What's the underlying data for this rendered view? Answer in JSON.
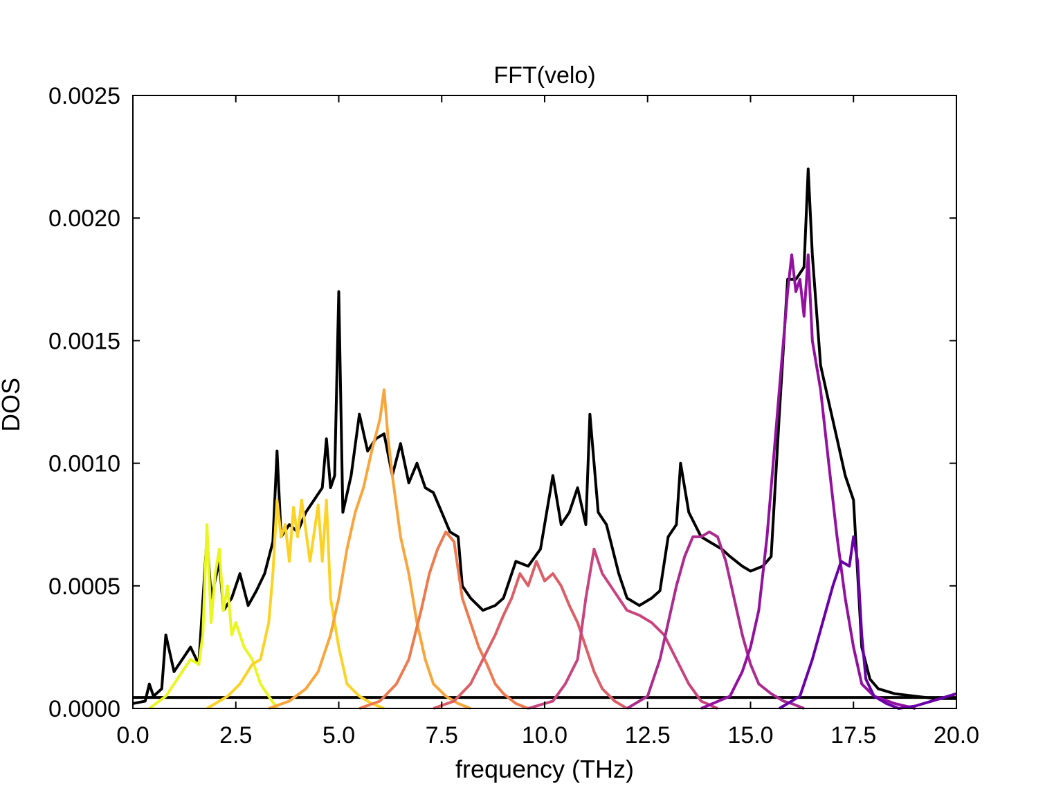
{
  "chart_data": {
    "type": "line",
    "title": "FFT(velo)",
    "xlabel": "frequency (THz)",
    "ylabel": "DOS",
    "xlim": [
      0,
      20
    ],
    "ylim": [
      0,
      0.0025
    ],
    "xticks": [
      "0.0",
      "2.5",
      "5.0",
      "7.5",
      "10.0",
      "12.5",
      "15.0",
      "17.5",
      "20.0"
    ],
    "yticks": [
      "0.0000",
      "0.0005",
      "0.0010",
      "0.0015",
      "0.0020",
      "0.0025"
    ],
    "grid": false,
    "legend": "none",
    "series": [
      {
        "color": "#000000",
        "x": [
          0,
          0.3,
          0.4,
          0.5,
          0.7,
          0.8,
          1.0,
          1.2,
          1.4,
          1.6,
          1.8,
          1.9,
          2.1,
          2.2,
          2.4,
          2.6,
          2.8,
          3.0,
          3.2,
          3.4,
          3.5,
          3.6,
          3.8,
          4.0,
          4.2,
          4.4,
          4.6,
          4.7,
          4.8,
          4.9,
          5.0,
          5.1,
          5.3,
          5.5,
          5.7,
          5.9,
          6.1,
          6.3,
          6.5,
          6.7,
          6.9,
          7.1,
          7.3,
          7.5,
          7.7,
          7.9,
          8.0,
          8.2,
          8.5,
          8.8,
          9.0,
          9.3,
          9.6,
          9.9,
          10.2,
          10.4,
          10.6,
          10.8,
          11.0,
          11.1,
          11.3,
          11.5,
          11.8,
          12.0,
          12.3,
          12.6,
          12.8,
          13.0,
          13.2,
          13.3,
          13.5,
          13.8,
          14.0,
          14.3,
          14.5,
          14.8,
          15.0,
          15.3,
          15.5,
          15.7,
          15.9,
          16.1,
          16.3,
          16.4,
          16.5,
          16.7,
          16.9,
          17.1,
          17.3,
          17.5,
          17.7,
          17.9,
          18.1,
          18.5,
          19.0,
          19.5,
          20.0
        ],
        "y": [
          2e-05,
          3e-05,
          0.0001,
          5e-05,
          8e-05,
          0.0003,
          0.00015,
          0.0002,
          0.00025,
          0.00018,
          0.0007,
          0.00045,
          0.0006,
          0.0004,
          0.00045,
          0.00055,
          0.00042,
          0.00048,
          0.00055,
          0.00068,
          0.00105,
          0.0007,
          0.00075,
          0.00072,
          0.0008,
          0.00085,
          0.0009,
          0.0011,
          0.0009,
          0.00095,
          0.0017,
          0.0008,
          0.00095,
          0.0012,
          0.00105,
          0.0011,
          0.00112,
          0.00095,
          0.00108,
          0.00092,
          0.001,
          0.0009,
          0.00088,
          0.0008,
          0.00072,
          0.0007,
          0.0005,
          0.00045,
          0.0004,
          0.00042,
          0.00045,
          0.0006,
          0.00058,
          0.00065,
          0.00095,
          0.00075,
          0.0008,
          0.0009,
          0.00075,
          0.0012,
          0.0008,
          0.00075,
          0.00055,
          0.00045,
          0.00042,
          0.00045,
          0.00048,
          0.0007,
          0.00075,
          0.001,
          0.0008,
          0.0007,
          0.00068,
          0.00065,
          0.00062,
          0.00058,
          0.00056,
          0.00058,
          0.00062,
          0.0012,
          0.00175,
          0.00175,
          0.0018,
          0.0022,
          0.00185,
          0.0014,
          0.00125,
          0.0011,
          0.00095,
          0.00085,
          0.00025,
          0.00012,
          8e-05,
          6e-05,
          5e-05,
          4e-05,
          4e-05
        ]
      },
      {
        "color": "#000000",
        "x": [
          0,
          20
        ],
        "y": [
          4.5e-05,
          4.5e-05
        ]
      },
      {
        "color": "#e9f71f",
        "x": [
          0.4,
          0.8,
          1.0,
          1.2,
          1.4,
          1.6,
          1.7,
          1.8,
          1.9,
          2.0,
          2.1,
          2.2,
          2.3,
          2.4,
          2.5,
          2.7,
          2.9,
          3.1,
          3.3,
          3.5
        ],
        "y": [
          0.0,
          5e-05,
          0.0001,
          0.00015,
          0.0002,
          0.00018,
          0.0003,
          0.00075,
          0.00035,
          0.00055,
          0.00065,
          0.0004,
          0.0005,
          0.0003,
          0.00035,
          0.00025,
          0.0002,
          0.0001,
          5e-05,
          0.0
        ]
      },
      {
        "color": "#fcd225",
        "x": [
          1.8,
          2.3,
          2.6,
          2.9,
          3.1,
          3.3,
          3.4,
          3.5,
          3.6,
          3.7,
          3.8,
          3.9,
          4.0,
          4.1,
          4.3,
          4.5,
          4.6,
          4.7,
          4.8,
          5.0,
          5.2,
          5.5,
          5.8,
          6.1
        ],
        "y": [
          0.0,
          5e-05,
          0.0001,
          0.00018,
          0.0002,
          0.00035,
          0.00055,
          0.00085,
          0.0007,
          0.00075,
          0.0006,
          0.00082,
          0.0007,
          0.00085,
          0.0006,
          0.00083,
          0.0006,
          0.00085,
          0.00045,
          0.00025,
          0.0001,
          5e-05,
          2e-05,
          0.0
        ]
      },
      {
        "color": "#f9a53b",
        "x": [
          3.3,
          3.8,
          4.2,
          4.5,
          4.8,
          5.0,
          5.2,
          5.4,
          5.6,
          5.8,
          6.0,
          6.1,
          6.2,
          6.3,
          6.5,
          6.7,
          6.9,
          7.1,
          7.3,
          7.6,
          7.9,
          8.2
        ],
        "y": [
          0.0,
          3e-05,
          8e-05,
          0.00015,
          0.0003,
          0.00045,
          0.00065,
          0.0008,
          0.0009,
          0.00105,
          0.00118,
          0.0013,
          0.0011,
          0.00095,
          0.0007,
          0.00055,
          0.00035,
          0.0002,
          0.0001,
          5e-05,
          2e-05,
          0.0
        ]
      },
      {
        "color": "#ee7a4e",
        "x": [
          5.5,
          6.0,
          6.4,
          6.7,
          7.0,
          7.2,
          7.4,
          7.6,
          7.8,
          8.0,
          8.2,
          8.4,
          8.6,
          8.8,
          9.0,
          9.3,
          9.6
        ],
        "y": [
          0.0,
          3e-05,
          0.0001,
          0.0002,
          0.0004,
          0.00055,
          0.00065,
          0.00072,
          0.00068,
          0.00045,
          0.00035,
          0.00025,
          0.00018,
          0.0001,
          6e-05,
          2e-05,
          0.0
        ]
      },
      {
        "color": "#dc5e66",
        "x": [
          7.3,
          7.8,
          8.2,
          8.5,
          8.8,
          9.0,
          9.2,
          9.4,
          9.6,
          9.8,
          10.0,
          10.2,
          10.4,
          10.6,
          10.8,
          11.0,
          11.2,
          11.4,
          11.7,
          12.0
        ],
        "y": [
          0.0,
          3e-05,
          0.0001,
          0.0002,
          0.0003,
          0.00038,
          0.00045,
          0.00055,
          0.0005,
          0.0006,
          0.00052,
          0.00055,
          0.0005,
          0.00042,
          0.00035,
          0.00025,
          0.00015,
          8e-05,
          3e-05,
          0.0
        ]
      },
      {
        "color": "#c9437f",
        "x": [
          9.6,
          10.2,
          10.5,
          10.8,
          11.0,
          11.2,
          11.4,
          11.6,
          11.8,
          12.0,
          12.3,
          12.6,
          12.9,
          13.2,
          13.5,
          13.8,
          14.2
        ],
        "y": [
          0.0,
          3e-05,
          0.0001,
          0.0002,
          0.00045,
          0.00065,
          0.00055,
          0.0005,
          0.00045,
          0.0004,
          0.00038,
          0.00035,
          0.0003,
          0.0002,
          0.0001,
          3e-05,
          0.0
        ]
      },
      {
        "color": "#ab2b8f",
        "x": [
          12.0,
          12.5,
          12.8,
          13.0,
          13.2,
          13.4,
          13.6,
          13.8,
          14.0,
          14.2,
          14.4,
          14.6,
          14.8,
          15.0,
          15.2,
          15.5,
          15.8,
          16.0,
          16.3
        ],
        "y": [
          0.0,
          5e-05,
          0.0002,
          0.00035,
          0.0005,
          0.00062,
          0.0007,
          0.0007,
          0.00072,
          0.0007,
          0.0006,
          0.00045,
          0.0003,
          0.00018,
          0.0001,
          6e-05,
          3e-05,
          2e-05,
          0.0
        ]
      },
      {
        "color": "#9410a0",
        "x": [
          13.8,
          14.5,
          14.8,
          15.0,
          15.2,
          15.4,
          15.6,
          15.8,
          15.9,
          16.0,
          16.1,
          16.2,
          16.3,
          16.4,
          16.5,
          16.7,
          16.9,
          17.1,
          17.3,
          17.5,
          17.7,
          18.0,
          18.5,
          19.0
        ],
        "y": [
          0.0,
          5e-05,
          0.00015,
          0.00025,
          0.0004,
          0.0007,
          0.0011,
          0.0015,
          0.0017,
          0.00185,
          0.0017,
          0.00175,
          0.0016,
          0.00185,
          0.0015,
          0.0013,
          0.001,
          0.0007,
          0.00045,
          0.00025,
          0.0001,
          5e-05,
          2e-05,
          0.0
        ]
      },
      {
        "color": "#6a00a8",
        "x": [
          15.7,
          16.2,
          16.5,
          16.8,
          17.0,
          17.2,
          17.4,
          17.5,
          17.6,
          17.7,
          17.8,
          18.0,
          18.3,
          18.6,
          19.0,
          19.4,
          19.8,
          20.0
        ],
        "y": [
          0.0,
          5e-05,
          0.0002,
          0.00038,
          0.0005,
          0.0006,
          0.00058,
          0.0007,
          0.0006,
          0.0003,
          0.00012,
          5e-05,
          2e-05,
          0.0,
          1e-05,
          3e-05,
          5e-05,
          6e-05
        ]
      }
    ]
  }
}
